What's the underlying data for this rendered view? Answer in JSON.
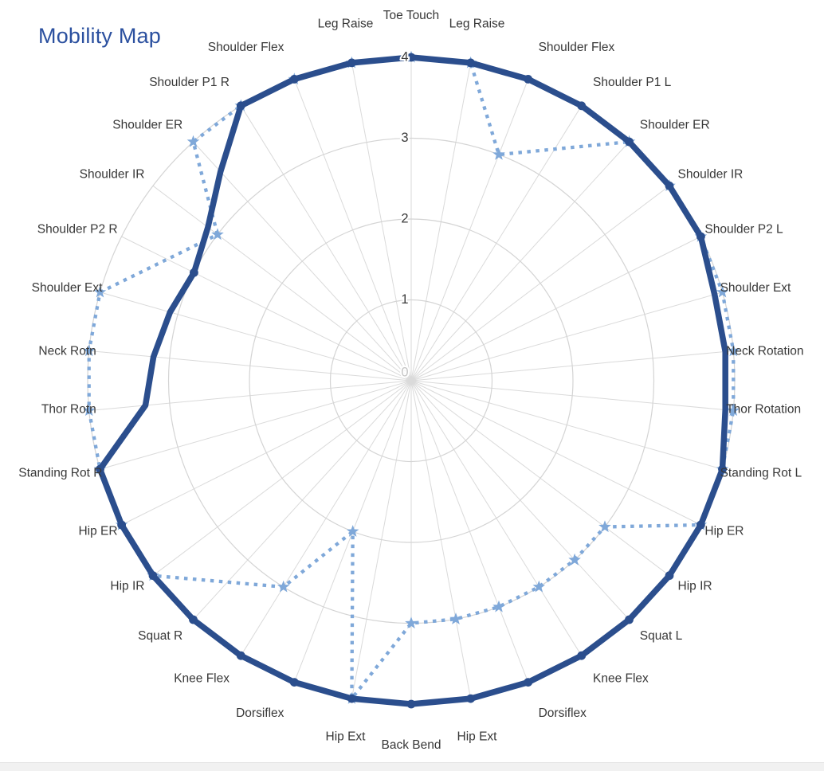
{
  "title": "Mobility Map",
  "colors": {
    "title": "#2b509f",
    "grid_spoke": "#dadada",
    "grid_ring": "#d4d4d4",
    "tick_label": "#3b3b3b",
    "tick_label_zero": "#c4c4c4",
    "axis_label": "#383838",
    "series_solid": "#2b4e8d",
    "series_dotted": "#7fa8d9",
    "card_bg": "#ffffff",
    "page_band": "#f1f1f1"
  },
  "chart_data": {
    "type": "radar",
    "title": "Mobility Map",
    "rlim": [
      0,
      4
    ],
    "r_ticks": [
      "0",
      "1",
      "2",
      "3",
      "4"
    ],
    "grid": true,
    "legend": "none",
    "categories": [
      "Toe Touch",
      "Leg Raise",
      "Shoulder Flex",
      "Shoulder P1 L",
      "Shoulder ER",
      "Shoulder IR",
      "Shoulder P2 L",
      "Shoulder Ext",
      "Neck Rotation",
      "Thor Rotation",
      "Standing Rot L",
      "Hip ER",
      "Hip IR",
      "Squat L",
      "Knee Flex",
      "Dorsiflex",
      "Hip Ext",
      "Back Bend",
      "Hip Ext",
      "Dorsiflex",
      "Knee Flex",
      "Squat R",
      "Hip IR",
      "Hip ER",
      "Standing Rot R",
      "Thor Rotn",
      "Neck Rotn",
      "Shoulder Ext",
      "Shoulder P2 R",
      "Shoulder IR",
      "Shoulder ER",
      "Shoulder P1 R",
      "Shoulder Flex",
      "Leg Raise"
    ],
    "series": [
      {
        "id": "solid-line",
        "style": "solid",
        "marker": "circle",
        "color": "#2b4e8d",
        "values": [
          4,
          4,
          4,
          4,
          4,
          4,
          4,
          3.9,
          3.9,
          3.9,
          4,
          4,
          4,
          4,
          4,
          4,
          4,
          4,
          4,
          4,
          4,
          4,
          4,
          4,
          4,
          3.3,
          3.2,
          3.1,
          3.0,
          3.15,
          3.5,
          4,
          4,
          4
        ]
      },
      {
        "id": "dotted-line",
        "style": "dashed",
        "marker": "star",
        "color": "#7fa8d9",
        "values": [
          4,
          4,
          3,
          null,
          4,
          4,
          4,
          4,
          4,
          4,
          4,
          4,
          3,
          3,
          3,
          3,
          3,
          3,
          4,
          2,
          3,
          null,
          4,
          4,
          4,
          4,
          4,
          4,
          null,
          3,
          4,
          4,
          4,
          4
        ]
      }
    ]
  }
}
